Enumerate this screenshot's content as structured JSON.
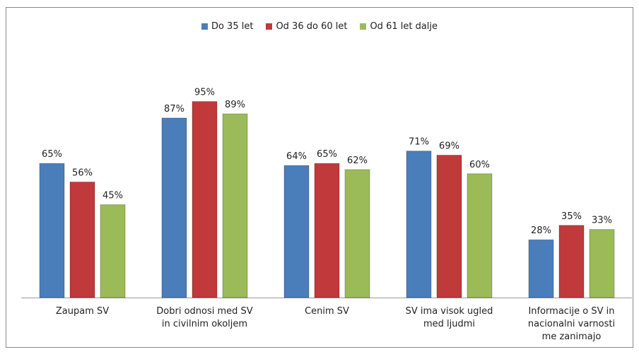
{
  "chart_data": {
    "type": "bar",
    "categories": [
      "Zaupam SV",
      "Dobri odnosi med SV\nin civilnim okoljem",
      "Cenim SV",
      "SV ima visok ugled\nmed ljudmi",
      "Informacije o SV in\nnacionalni varnosti\nme zanimajo"
    ],
    "series": [
      {
        "name": "Do 35 let",
        "color": "#4a7ebb",
        "values": [
          65,
          87,
          64,
          71,
          28
        ],
        "value_labels": [
          "65%",
          "87%",
          "64%",
          "71%",
          "28%"
        ]
      },
      {
        "name": "Od 36 do 60 let",
        "color": "#c0393b",
        "values": [
          56,
          95,
          65,
          69,
          35
        ],
        "value_labels": [
          "56%",
          "95%",
          "65%",
          "69%",
          "35%"
        ]
      },
      {
        "name": "Od 61 let dalje",
        "color": "#9bbb59",
        "values": [
          45,
          89,
          62,
          60,
          33
        ],
        "value_labels": [
          "45%",
          "89%",
          "62%",
          "60%",
          "33%"
        ]
      }
    ],
    "legend": "top"
  }
}
